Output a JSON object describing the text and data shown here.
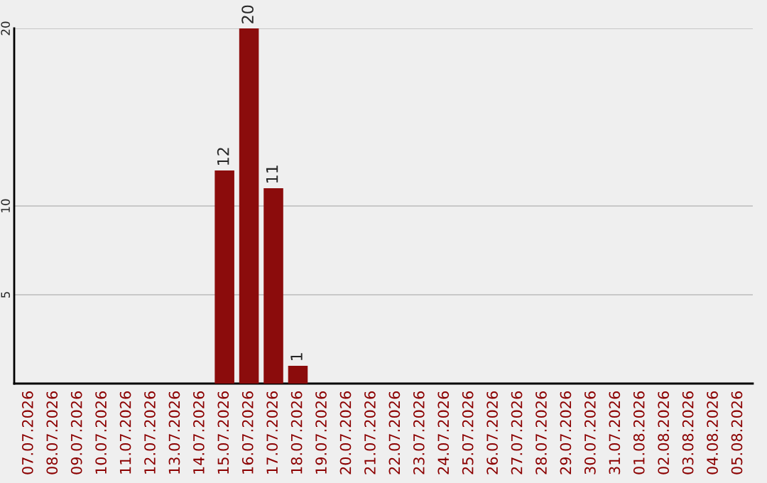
{
  "chart_data": {
    "type": "bar",
    "categories": [
      "07.07.2026",
      "08.07.2026",
      "09.07.2026",
      "10.07.2026",
      "11.07.2026",
      "12.07.2026",
      "13.07.2026",
      "14.07.2026",
      "15.07.2026",
      "16.07.2026",
      "17.07.2026",
      "18.07.2026",
      "19.07.2026",
      "20.07.2026",
      "21.07.2026",
      "22.07.2026",
      "23.07.2026",
      "24.07.2026",
      "25.07.2026",
      "26.07.2026",
      "27.07.2026",
      "28.07.2026",
      "29.07.2026",
      "30.07.2026",
      "31.07.2026",
      "01.08.2026",
      "02.08.2026",
      "03.08.2026",
      "04.08.2026",
      "05.08.2026"
    ],
    "values": [
      0,
      0,
      0,
      0,
      0,
      0,
      0,
      0,
      12,
      20,
      11,
      1,
      0,
      0,
      0,
      0,
      0,
      0,
      0,
      0,
      0,
      0,
      0,
      0,
      0,
      0,
      0,
      0,
      0,
      0
    ],
    "value_labels": [
      null,
      null,
      null,
      null,
      null,
      null,
      null,
      null,
      "12",
      "20",
      "11",
      "1",
      null,
      null,
      null,
      null,
      null,
      null,
      null,
      null,
      null,
      null,
      null,
      null,
      null,
      null,
      null,
      null,
      null,
      null
    ],
    "color": "#8b0c0c",
    "ylim": [
      0,
      20
    ],
    "yticks": [
      5,
      10,
      20
    ],
    "grid": "y",
    "legend": false
  }
}
